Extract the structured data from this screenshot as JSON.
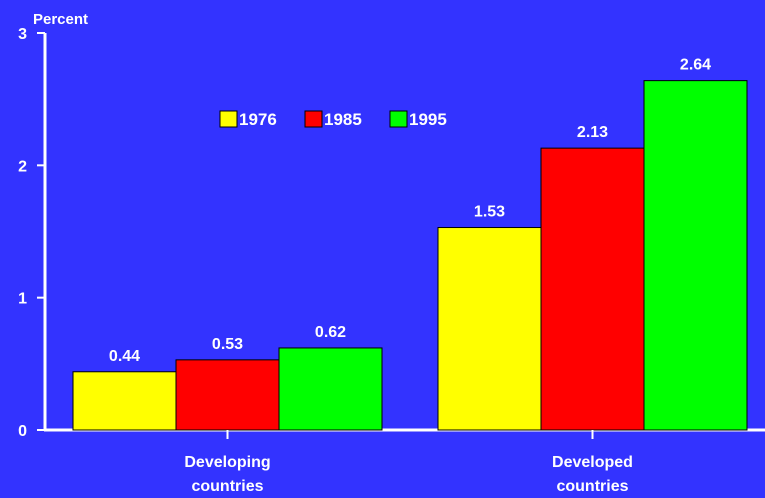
{
  "chart_data": {
    "type": "bar",
    "title": "",
    "ylabel": "Percent",
    "xlabel": "",
    "categories": [
      "Developing\ncountries",
      "Developed\ncountries"
    ],
    "series": [
      {
        "name": "1976",
        "values": [
          0.44,
          1.53
        ],
        "color": "#ffff00"
      },
      {
        "name": "1985",
        "values": [
          0.53,
          2.13
        ],
        "color": "#ff0000"
      },
      {
        "name": "1995",
        "values": [
          0.62,
          2.64
        ],
        "color": "#00ff00"
      }
    ],
    "value_labels": [
      [
        "0.44",
        "1.53"
      ],
      [
        "0.53",
        "2.13"
      ],
      [
        "0.62",
        "2.64"
      ]
    ],
    "y_ticks": [
      "0",
      "1",
      "2",
      "3"
    ],
    "ylim": [
      0,
      3
    ],
    "grid": false,
    "legend_position": "top-left inside plot",
    "background_color": "#3333ff",
    "axis_color": "#ffffff"
  }
}
